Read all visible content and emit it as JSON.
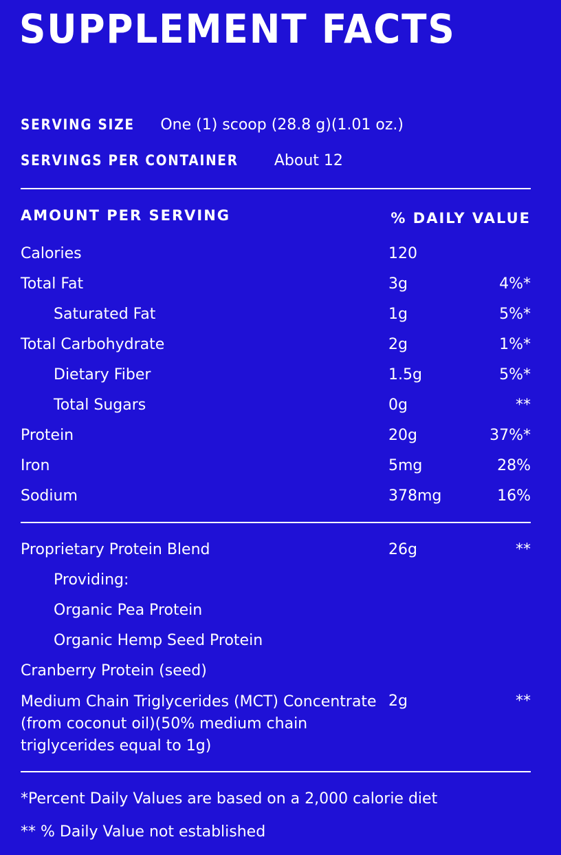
{
  "title": "SUPPLEMENT FACTS",
  "serving": {
    "size_label": "SERVING SIZE",
    "size_value": "One (1) scoop (28.8 g)(1.01 oz.)",
    "per_container_label": "SERVINGS PER CONTAINER",
    "per_container_value": "About 12"
  },
  "header": {
    "amount_label": "AMOUNT PER SERVING",
    "dv_label": "% DAILY VALUE"
  },
  "nutrients": [
    {
      "name": "Calories",
      "amount": "120",
      "dv": ""
    },
    {
      "name": "Total Fat",
      "amount": "3g",
      "dv": "4%*"
    },
    {
      "name": "Saturated Fat",
      "amount": "1g",
      "dv": "5%*"
    },
    {
      "name": "Total Carbohydrate",
      "amount": "2g",
      "dv": "1%*"
    },
    {
      "name": "Dietary Fiber",
      "amount": "1.5g",
      "dv": "5%*"
    },
    {
      "name": "Total Sugars",
      "amount": "0g",
      "dv": "**"
    },
    {
      "name": "Protein",
      "amount": "20g",
      "dv": "37%*"
    },
    {
      "name": "Iron",
      "amount": "5mg",
      "dv": "28%"
    },
    {
      "name": "Sodium",
      "amount": "378mg",
      "dv": "16%"
    }
  ],
  "blend": [
    {
      "name": "Proprietary Protein Blend",
      "amount": "26g",
      "dv": "**"
    },
    {
      "name": "Providing:",
      "amount": "",
      "dv": ""
    },
    {
      "name": "Organic Pea Protein",
      "amount": "",
      "dv": ""
    },
    {
      "name": "Organic Hemp Seed Protein",
      "amount": "",
      "dv": ""
    },
    {
      "name": "Cranberry Protein (seed)",
      "amount": "",
      "dv": ""
    },
    {
      "name": "Medium Chain Triglycerides (MCT) Concentrate (from coconut oil)(50% medium chain triglycerides equal to 1g)",
      "amount": "2g",
      "dv": "**"
    }
  ],
  "footnotes": {
    "daily_values": "*Percent Daily Values are based on a 2,000 calorie diet",
    "not_established": "** % Daily Value not established"
  },
  "colors": {
    "background": "#1f11d6",
    "text": "#ffffff"
  }
}
